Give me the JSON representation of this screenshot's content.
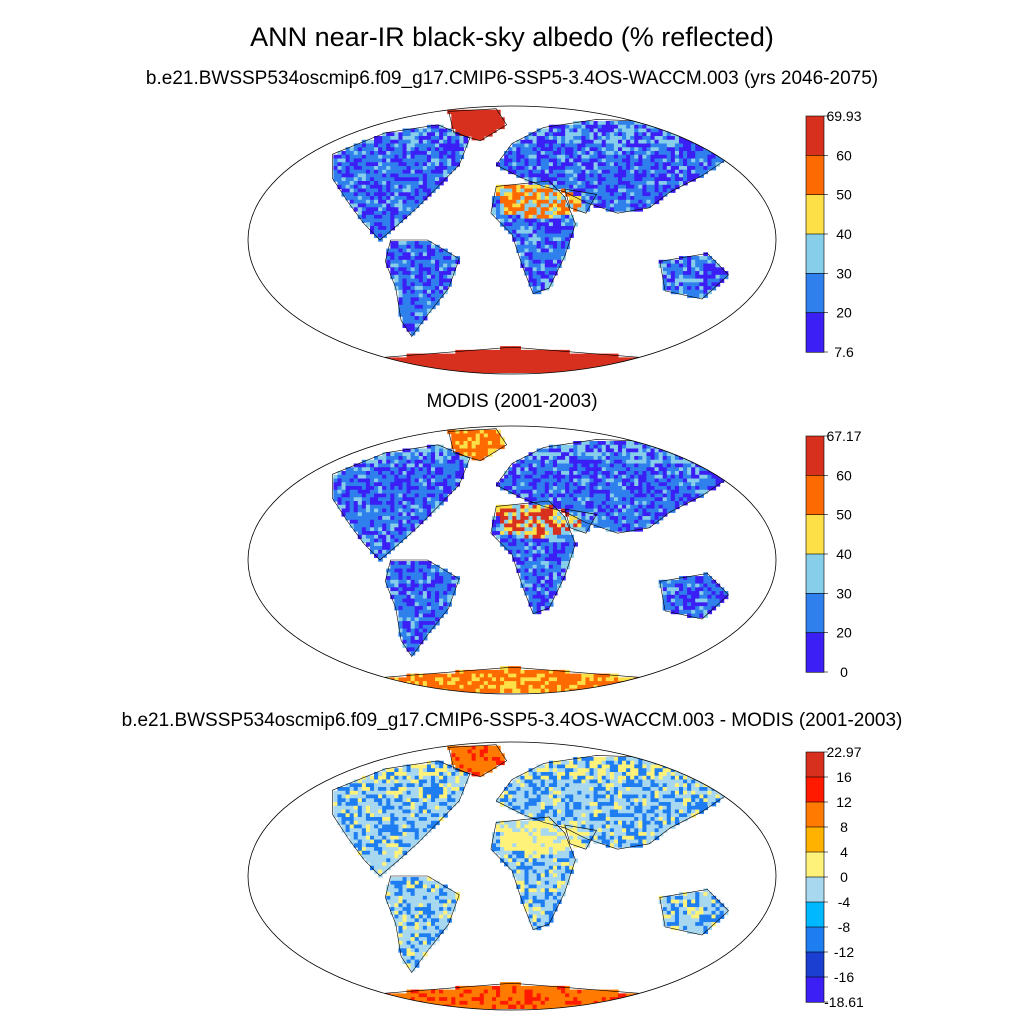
{
  "figure": {
    "title": "ANN near-IR black-sky albedo (% reflected)"
  },
  "panels": [
    {
      "subtitle": "b.e21.BWSSP534oscmip6.f09_g17.CMIP6-SSP5-3.4OS-WACCM.003 (yrs 2046-2075)",
      "colorbar": {
        "labels": [
          "69.93",
          "60",
          "50",
          "40",
          "30",
          "20",
          "7.6"
        ],
        "colors": [
          "#d7301f",
          "#fd6a02",
          "#fde047",
          "#87ceeb",
          "#2f80ed",
          "#3b1ff5"
        ]
      },
      "palette": {
        "ocean": "#ffffff",
        "land_low": "#3b1ff5",
        "land": "#2f80ed",
        "land_mid": "#87ceeb",
        "desert": "#fde047",
        "desert_hi": "#fd6a02",
        "ice": "#d7301f",
        "ice_hi": "#d7301f"
      }
    },
    {
      "subtitle": "MODIS (2001-2003)",
      "colorbar": {
        "labels": [
          "67.17",
          "60",
          "50",
          "40",
          "30",
          "20",
          "0"
        ],
        "colors": [
          "#d7301f",
          "#fd6a02",
          "#fde047",
          "#87ceeb",
          "#2f80ed",
          "#3b1ff5"
        ]
      },
      "palette": {
        "ocean": "#ffffff",
        "land_low": "#3b1ff5",
        "land": "#2f80ed",
        "land_mid": "#87ceeb",
        "desert": "#fde047",
        "desert_hi": "#d7301f",
        "ice": "#fd6a02",
        "ice_hi": "#fde047"
      }
    },
    {
      "subtitle": "b.e21.BWSSP534oscmip6.f09_g17.CMIP6-SSP5-3.4OS-WACCM.003 - MODIS (2001-2003)",
      "colorbar": {
        "labels": [
          "22.97",
          "16",
          "12",
          "8",
          "4",
          "0",
          "-4",
          "-8",
          "-12",
          "-16",
          "-18.61"
        ],
        "colors": [
          "#d7301f",
          "#ff1a00",
          "#ff7a00",
          "#ffb300",
          "#fff27a",
          "#a8d8f0",
          "#00b8ff",
          "#1e7df0",
          "#1a3fd1",
          "#3b1ff5"
        ]
      },
      "palette": {
        "ocean": "#ffffff",
        "land_low": "#1e7df0",
        "land": "#a8d8f0",
        "land_mid": "#fff27a",
        "desert": "#a8d8f0",
        "desert_hi": "#fff27a",
        "ice": "#ff7a00",
        "ice_hi": "#ff1a00"
      }
    }
  ]
}
